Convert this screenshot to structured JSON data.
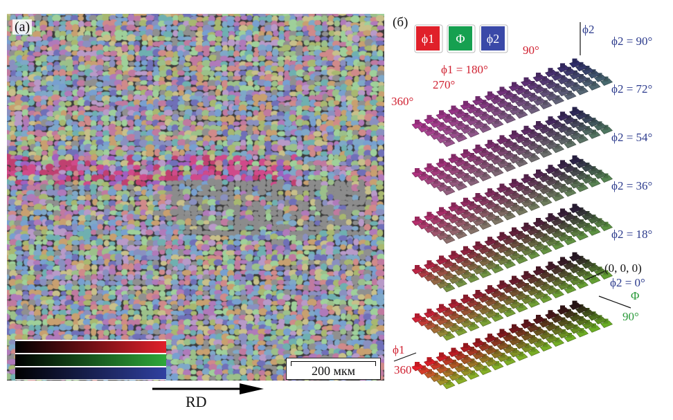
{
  "panel_a": {
    "label": "(a)",
    "scale_bar_label": "200 мкм",
    "direction_label": "RD"
  },
  "panel_b": {
    "label": "(б)",
    "legend": [
      {
        "symbol": "ϕ1",
        "color": "#e0202a"
      },
      {
        "symbol": "Φ",
        "color": "#16a050"
      },
      {
        "symbol": "ϕ2",
        "color": "#3a49a8"
      }
    ],
    "phi2_axis_label": "ϕ2",
    "phi1_top_ticks": [
      "90°",
      "ϕ1 = 180°",
      "270°",
      "360°"
    ],
    "slice_labels": [
      "ϕ2 = 90°",
      "ϕ2 = 72°",
      "ϕ2 = 54°",
      "ϕ2 = 36°",
      "ϕ2 = 18°",
      "ϕ2 = 0°"
    ],
    "origin_label": "(0, 0, 0)",
    "Phi_axis_label": "Φ",
    "Phi_tick": "90°",
    "phi1_axis_label": "ϕ1",
    "phi1_tick": "360°"
  },
  "colors": {
    "phi1_red": "#e0202a",
    "Phi_green": "#2a9a3a",
    "phi2_blue": "#2f3f98",
    "label_red": "#d02030",
    "label_green": "#2a9a3a",
    "label_blue": "#2b3a8c"
  }
}
